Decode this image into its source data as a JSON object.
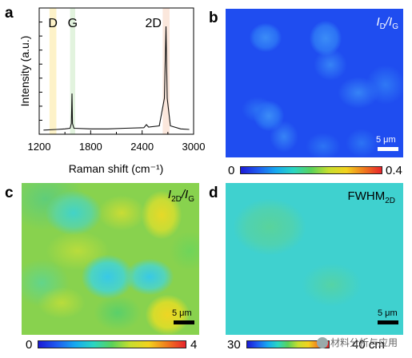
{
  "panels": {
    "a": {
      "letter": "a"
    },
    "b": {
      "letter": "b",
      "quantity_i": "I",
      "quantity_d": "D",
      "quantity_slash": "/",
      "quantity_i2": "I",
      "quantity_g": "G",
      "scale_label": "5 μm",
      "cbar_min": "0",
      "cbar_max": "0.4"
    },
    "c": {
      "letter": "c",
      "quantity_i": "I",
      "quantity_2d": "2D",
      "quantity_slash": "/",
      "quantity_i2": "I",
      "quantity_g": "G",
      "scale_label": "5 μm",
      "cbar_min": "0",
      "cbar_max": "4"
    },
    "d": {
      "letter": "d",
      "quantity_main": "FWHM",
      "quantity_sub": "2D",
      "scale_label": "5 μm",
      "cbar_min": "30",
      "cbar_max": "40 cm"
    }
  },
  "watermark": "材料分析与应用",
  "colormap": [
    "#1b1bd6",
    "#1f5cf0",
    "#16a9f0",
    "#2ad6c2",
    "#5ad25a",
    "#c8de2e",
    "#f2d21e",
    "#f07a1e",
    "#e8242c"
  ],
  "chart_data": {
    "type": "line",
    "title": "",
    "xlabel": "Raman shift (cm⁻¹)",
    "ylabel": "Intensity (a.u.)",
    "xlim": [
      1200,
      3000
    ],
    "ylim": [
      0,
      1.0
    ],
    "xticks": [
      1200,
      1800,
      2400,
      3000
    ],
    "xtick_labels": [
      "1200",
      "1800",
      "2400",
      "3000"
    ],
    "grid": false,
    "bands": [
      {
        "label": "D",
        "x_range": [
          1320,
          1400
        ],
        "color": "#fdf2c8"
      },
      {
        "label": "G",
        "x_range": [
          1560,
          1620
        ],
        "color": "#e2f3de"
      },
      {
        "label": "2D",
        "x_range": [
          2640,
          2720
        ],
        "color": "#fbe7dc"
      }
    ],
    "series": [
      {
        "values": [
          {
            "x": 1250,
            "y": 0.035
          },
          {
            "x": 1400,
            "y": 0.04
          },
          {
            "x": 1500,
            "y": 0.045
          },
          {
            "x": 1560,
            "y": 0.05
          },
          {
            "x": 1575,
            "y": 0.09
          },
          {
            "x": 1582,
            "y": 0.34
          },
          {
            "x": 1588,
            "y": 0.09
          },
          {
            "x": 1605,
            "y": 0.05
          },
          {
            "x": 1800,
            "y": 0.045
          },
          {
            "x": 2000,
            "y": 0.045
          },
          {
            "x": 2200,
            "y": 0.05
          },
          {
            "x": 2420,
            "y": 0.055
          },
          {
            "x": 2450,
            "y": 0.08
          },
          {
            "x": 2475,
            "y": 0.06
          },
          {
            "x": 2600,
            "y": 0.07
          },
          {
            "x": 2660,
            "y": 0.3
          },
          {
            "x": 2678,
            "y": 0.9
          },
          {
            "x": 2692,
            "y": 0.3
          },
          {
            "x": 2730,
            "y": 0.07
          },
          {
            "x": 2850,
            "y": 0.045
          },
          {
            "x": 2950,
            "y": 0.04
          }
        ]
      }
    ]
  }
}
